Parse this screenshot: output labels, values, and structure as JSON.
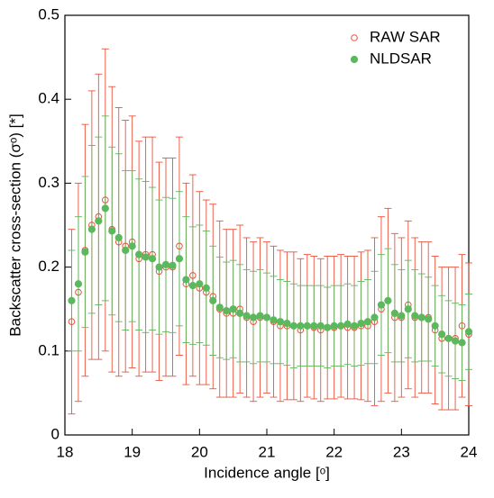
{
  "chart_data": {
    "type": "scatter",
    "xlabel": "Incidence angle [ᵒ]",
    "ylabel": "Backscatter cross-section (σᵒ) [*]",
    "x": [
      18.1,
      18.2,
      18.3,
      18.4,
      18.5,
      18.6,
      18.7,
      18.8,
      18.9,
      19.0,
      19.1,
      19.2,
      19.3,
      19.4,
      19.5,
      19.6,
      19.7,
      19.8,
      19.9,
      20.0,
      20.1,
      20.2,
      20.3,
      20.4,
      20.5,
      20.6,
      20.7,
      20.8,
      20.9,
      21.0,
      21.1,
      21.2,
      21.3,
      21.4,
      21.5,
      21.6,
      21.7,
      21.8,
      21.9,
      22.0,
      22.1,
      22.2,
      22.3,
      22.4,
      22.5,
      22.6,
      22.7,
      22.8,
      22.9,
      23.0,
      23.1,
      23.2,
      23.3,
      23.4,
      23.5,
      23.6,
      23.7,
      23.8,
      23.9,
      24.0
    ],
    "series": [
      {
        "name": "RAW SAR",
        "color": "#e8533a",
        "marker": "open",
        "values": [
          0.135,
          0.17,
          0.22,
          0.25,
          0.26,
          0.28,
          0.245,
          0.23,
          0.225,
          0.23,
          0.21,
          0.215,
          0.215,
          0.195,
          0.2,
          0.2,
          0.225,
          0.18,
          0.19,
          0.175,
          0.17,
          0.165,
          0.15,
          0.145,
          0.145,
          0.15,
          0.14,
          0.135,
          0.14,
          0.14,
          0.135,
          0.13,
          0.13,
          0.13,
          0.125,
          0.13,
          0.128,
          0.125,
          0.128,
          0.128,
          0.13,
          0.128,
          0.128,
          0.13,
          0.13,
          0.135,
          0.15,
          0.16,
          0.14,
          0.14,
          0.155,
          0.14,
          0.14,
          0.14,
          0.125,
          0.115,
          0.115,
          0.115,
          0.13,
          0.12
        ],
        "errors": [
          0.11,
          0.13,
          0.15,
          0.16,
          0.17,
          0.18,
          0.17,
          0.16,
          0.15,
          0.15,
          0.14,
          0.14,
          0.14,
          0.13,
          0.13,
          0.13,
          0.13,
          0.12,
          0.12,
          0.115,
          0.11,
          0.11,
          0.105,
          0.1,
          0.1,
          0.1,
          0.095,
          0.095,
          0.095,
          0.09,
          0.09,
          0.09,
          0.088,
          0.088,
          0.085,
          0.085,
          0.085,
          0.085,
          0.085,
          0.085,
          0.085,
          0.085,
          0.085,
          0.088,
          0.09,
          0.1,
          0.11,
          0.11,
          0.1,
          0.095,
          0.1,
          0.095,
          0.09,
          0.09,
          0.088,
          0.085,
          0.085,
          0.085,
          0.085,
          0.085
        ]
      },
      {
        "name": "NLDSAR",
        "color": "#5cb85c",
        "marker": "filled",
        "values": [
          0.16,
          0.18,
          0.218,
          0.245,
          0.255,
          0.27,
          0.243,
          0.235,
          0.22,
          0.225,
          0.215,
          0.212,
          0.21,
          0.2,
          0.203,
          0.202,
          0.21,
          0.185,
          0.178,
          0.18,
          0.175,
          0.16,
          0.152,
          0.148,
          0.15,
          0.145,
          0.142,
          0.14,
          0.142,
          0.14,
          0.137,
          0.135,
          0.133,
          0.13,
          0.13,
          0.13,
          0.13,
          0.13,
          0.128,
          0.13,
          0.13,
          0.132,
          0.13,
          0.133,
          0.135,
          0.14,
          0.155,
          0.16,
          0.145,
          0.142,
          0.15,
          0.142,
          0.14,
          0.138,
          0.13,
          0.12,
          0.115,
          0.112,
          0.11,
          0.123
        ],
        "errors": [
          0.06,
          0.08,
          0.09,
          0.1,
          0.1,
          0.11,
          0.1,
          0.1,
          0.095,
          0.09,
          0.09,
          0.09,
          0.085,
          0.08,
          0.08,
          0.08,
          0.08,
          0.075,
          0.07,
          0.07,
          0.068,
          0.065,
          0.06,
          0.058,
          0.058,
          0.058,
          0.055,
          0.055,
          0.055,
          0.053,
          0.052,
          0.05,
          0.05,
          0.05,
          0.048,
          0.048,
          0.048,
          0.048,
          0.048,
          0.048,
          0.048,
          0.048,
          0.048,
          0.05,
          0.05,
          0.055,
          0.06,
          0.062,
          0.058,
          0.055,
          0.058,
          0.055,
          0.052,
          0.05,
          0.048,
          0.046,
          0.045,
          0.045,
          0.045,
          0.045
        ]
      }
    ],
    "xlim": [
      18,
      24
    ],
    "ylim": [
      0,
      0.5
    ],
    "xticks": [
      18,
      19,
      20,
      21,
      22,
      23,
      24
    ],
    "yticks": [
      0,
      0.1,
      0.2,
      0.3,
      0.4,
      0.5
    ],
    "legend": "upper right"
  }
}
